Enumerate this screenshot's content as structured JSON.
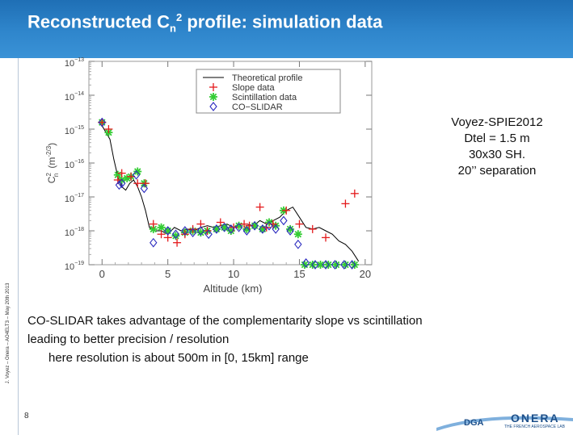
{
  "slide": {
    "title_main": "Reconstructed C",
    "title_sub": "n",
    "title_sup": "2",
    "title_rest": " profile: simulation data",
    "side_text": "J. Voyez – Onera – AO4ELT3 – May 20th 2013",
    "page_number": "8",
    "note_lines": [
      "Voyez-SPIE2012",
      "Dtel = 1.5 m",
      "30x30 SH.",
      "20’’ separation"
    ],
    "body_lines": [
      "CO-SLIDAR takes advantage of the complementarity slope vs scintillation",
      "leading to better precision / resolution",
      "here resolution is about 500m in [0, 15km] range"
    ],
    "logos": {
      "onera": "ONERA",
      "onera_tagline": "THE FRENCH AEROSPACE LAB",
      "dga": "DGA"
    }
  },
  "colors": {
    "title_bar": "#2f86cc",
    "slope": "#e41a1c",
    "scint": "#33cc33",
    "coslidar": "#2b2bbf",
    "theory": "#000000"
  },
  "chart_data": {
    "type": "scatter",
    "xlabel": "Altitude (km)",
    "ylabel": "C²n (m^-2/3)",
    "ylabel_prefix": "C",
    "ylabel_sub": "n",
    "ylabel_sup": "2",
    "ylabel_units": "(m",
    "ylabel_units_sup": "-2/3",
    "ylabel_close": ")",
    "xlim": [
      -1.0,
      20.5
    ],
    "ylim_log10": [
      -19,
      -13
    ],
    "xticks": [
      0,
      5,
      10,
      15,
      20
    ],
    "yticks_log10": [
      -13,
      -14,
      -15,
      -16,
      -17,
      -18,
      -19
    ],
    "ytick_base": "10",
    "ytick_labels": [
      "−13",
      "−14",
      "−15",
      "−16",
      "−17",
      "−18",
      "−19"
    ],
    "legend": [
      {
        "label": "Theoretical profile",
        "marker": "line"
      },
      {
        "label": "Slope data",
        "marker": "plus"
      },
      {
        "label": "Scintillation data",
        "marker": "star"
      },
      {
        "label": "CO−SLIDAR",
        "marker": "diamond"
      }
    ],
    "series": [
      {
        "name": "Theoretical profile",
        "marker": "line",
        "x": [
          0,
          0.3,
          0.6,
          0.9,
          1.2,
          1.5,
          1.8,
          2.1,
          2.4,
          2.7,
          3.0,
          3.3,
          3.6,
          4.0,
          4.5,
          5.0,
          5.5,
          6.0,
          6.5,
          7.0,
          7.5,
          8.0,
          8.5,
          9.0,
          9.5,
          10.0,
          10.5,
          11.0,
          11.5,
          12.0,
          12.5,
          13.0,
          13.5,
          14.0,
          14.5,
          15.0,
          15.5,
          16.0,
          16.5,
          17.0,
          17.5,
          18.0,
          18.5,
          19.0,
          19.5
        ],
        "y": [
          -14.9,
          -15.1,
          -15.3,
          -15.9,
          -16.4,
          -16.7,
          -16.8,
          -16.6,
          -16.5,
          -16.7,
          -17.0,
          -17.4,
          -17.9,
          -18.0,
          -18.0,
          -18.1,
          -17.9,
          -18.0,
          -17.95,
          -18.0,
          -17.9,
          -17.85,
          -17.9,
          -17.85,
          -17.8,
          -17.9,
          -17.8,
          -17.8,
          -17.85,
          -17.7,
          -17.8,
          -17.7,
          -17.6,
          -17.4,
          -17.3,
          -17.6,
          -17.9,
          -17.95,
          -17.9,
          -18.0,
          -18.1,
          -18.3,
          -18.4,
          -18.6,
          -18.9
        ]
      },
      {
        "name": "Slope data",
        "marker": "plus",
        "x": [
          0.0,
          0.5,
          1.2,
          1.5,
          2.2,
          2.7,
          3.3,
          3.9,
          4.5,
          5.0,
          5.7,
          6.3,
          6.9,
          7.5,
          8.0,
          9.0,
          10.0,
          10.8,
          11.2,
          12.0,
          12.5,
          13.0,
          14.0,
          15.0,
          16.0,
          17.0,
          18.5,
          19.2
        ],
        "y": [
          -14.8,
          -15.0,
          -16.5,
          -16.3,
          -16.4,
          -16.6,
          -16.6,
          -17.8,
          -18.1,
          -18.2,
          -18.35,
          -18.1,
          -17.95,
          -17.8,
          -18.0,
          -17.75,
          -17.9,
          -17.8,
          -17.85,
          -17.3,
          -17.9,
          -17.8,
          -17.4,
          -17.8,
          -17.95,
          -18.2,
          -17.2,
          -16.9
        ]
      },
      {
        "name": "Scintillation data",
        "marker": "star",
        "x": [
          0.0,
          0.5,
          1.2,
          1.5,
          1.9,
          2.2,
          2.7,
          3.2,
          3.9,
          4.5,
          5.0,
          5.6,
          6.3,
          6.9,
          7.5,
          8.0,
          8.7,
          9.3,
          9.8,
          10.4,
          11.0,
          11.6,
          12.2,
          12.7,
          13.2,
          13.8,
          14.3,
          14.9,
          15.4,
          16.0,
          16.6,
          17.2,
          17.8,
          18.5,
          19.2
        ],
        "y": [
          -14.8,
          -15.1,
          -16.35,
          -16.5,
          -16.45,
          -16.4,
          -16.25,
          -16.6,
          -17.95,
          -17.9,
          -18.0,
          -18.15,
          -18.05,
          -18.0,
          -18.05,
          -18.0,
          -17.95,
          -17.9,
          -18.0,
          -17.85,
          -17.95,
          -17.85,
          -17.95,
          -17.75,
          -17.85,
          -17.4,
          -17.95,
          -18.1,
          -19.0,
          -19.0,
          -19.0,
          -19.0,
          -19.0,
          -19.0,
          -19.0
        ]
      },
      {
        "name": "CO−SLIDAR",
        "marker": "diamond",
        "x": [
          0.0,
          1.3,
          1.5,
          2.6,
          3.2,
          3.9,
          5.0,
          5.6,
          6.3,
          6.9,
          7.5,
          8.1,
          8.7,
          9.3,
          9.8,
          10.4,
          11.0,
          11.6,
          12.2,
          12.7,
          13.2,
          13.8,
          14.3,
          14.9,
          15.5,
          16.2,
          17.0,
          17.7,
          18.4,
          19.0
        ],
        "y": [
          -14.8,
          -16.65,
          -16.6,
          -16.35,
          -16.75,
          -18.35,
          -18.0,
          -18.1,
          -18.0,
          -18.05,
          -18.0,
          -18.1,
          -17.95,
          -17.9,
          -17.95,
          -17.9,
          -18.0,
          -17.85,
          -17.95,
          -17.85,
          -17.95,
          -17.7,
          -18.0,
          -18.4,
          -18.95,
          -19.0,
          -19.0,
          -19.0,
          -19.0,
          -19.0
        ]
      }
    ]
  }
}
